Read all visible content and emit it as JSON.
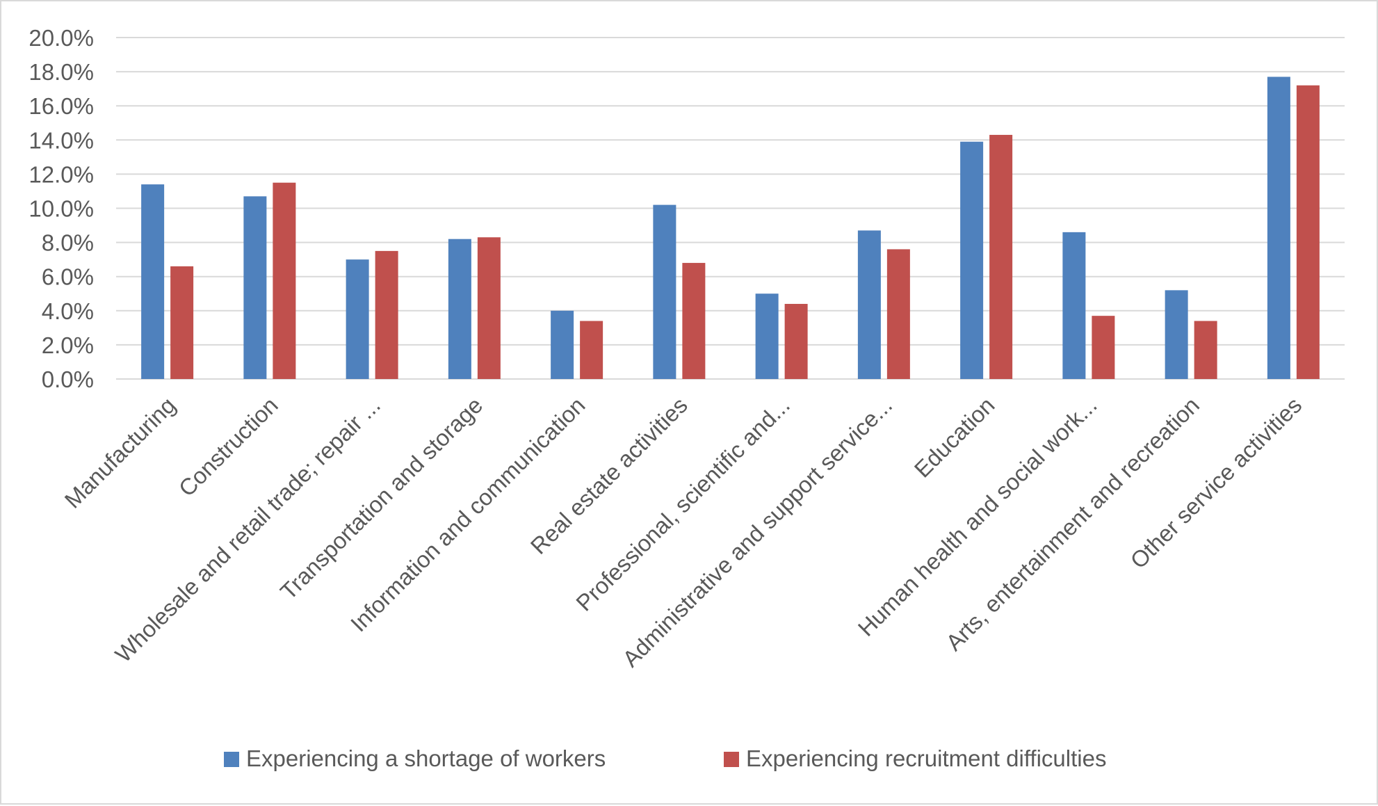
{
  "chart_data": {
    "type": "bar",
    "title": "",
    "xlabel": "",
    "ylabel": "",
    "ylim": [
      0,
      20
    ],
    "y_ticks": [
      "0.0%",
      "2.0%",
      "4.0%",
      "6.0%",
      "8.0%",
      "10.0%",
      "12.0%",
      "14.0%",
      "16.0%",
      "18.0%",
      "20.0%"
    ],
    "grid": true,
    "legend_position": "bottom",
    "categories": [
      "Manufacturing",
      "Construction",
      "Wholesale and retail trade; repair ...",
      "Transportation and storage",
      "Information and communication",
      "Real estate activities",
      "Professional, scientific and...",
      "Administrative and support service...",
      "Education",
      "Human health and social work...",
      "Arts, entertainment and recreation",
      "Other service activities"
    ],
    "series": [
      {
        "name": "Experiencing a shortage of workers",
        "color": "#4F81BD",
        "values": [
          11.4,
          10.7,
          7.0,
          8.2,
          4.0,
          10.2,
          5.0,
          8.7,
          13.9,
          8.6,
          5.2,
          17.7
        ]
      },
      {
        "name": "Experiencing recruitment difficulties",
        "color": "#C0504D",
        "values": [
          6.6,
          11.5,
          7.5,
          8.3,
          3.4,
          6.8,
          4.4,
          7.6,
          14.3,
          3.7,
          3.4,
          17.2
        ]
      }
    ]
  }
}
